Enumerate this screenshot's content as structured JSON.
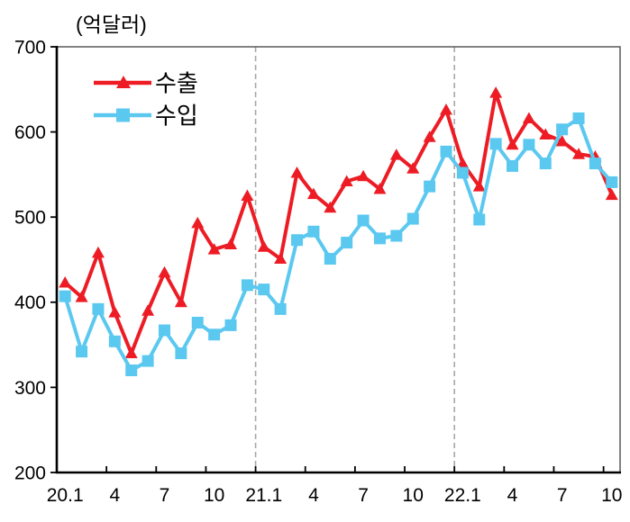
{
  "title_unit": "(억달러)",
  "legend": {
    "items": [
      {
        "label": "수출",
        "color": "#ED1C24",
        "marker": "triangle"
      },
      {
        "label": "수입",
        "color": "#5BC8F0",
        "marker": "square"
      }
    ]
  },
  "chart_data": {
    "type": "line",
    "title": "",
    "ylabel_unit": "(억달러)",
    "categories": [
      "20.1",
      "20.2",
      "20.3",
      "20.4",
      "20.5",
      "20.6",
      "20.7",
      "20.8",
      "20.9",
      "20.10",
      "20.11",
      "20.12",
      "21.1",
      "21.2",
      "21.3",
      "21.4",
      "21.5",
      "21.6",
      "21.7",
      "21.8",
      "21.9",
      "21.10",
      "21.11",
      "21.12",
      "22.1",
      "22.2",
      "22.3",
      "22.4",
      "22.5",
      "22.6",
      "22.7",
      "22.8",
      "22.9",
      "22.10"
    ],
    "series": [
      {
        "name": "수출",
        "color": "#ED1C24",
        "marker": "triangle",
        "values": [
          423,
          406,
          458,
          388,
          340,
          390,
          435,
          400,
          493,
          462,
          468,
          525,
          465,
          451,
          552,
          527,
          511,
          542,
          548,
          533,
          573,
          557,
          594,
          626,
          563,
          536,
          646,
          585,
          616,
          597,
          589,
          574,
          571,
          526
        ]
      },
      {
        "name": "수입",
        "color": "#5BC8F0",
        "marker": "square",
        "values": [
          407,
          342,
          392,
          354,
          320,
          331,
          367,
          340,
          376,
          362,
          373,
          420,
          415,
          392,
          473,
          483,
          451,
          470,
          496,
          475,
          478,
          498,
          536,
          577,
          552,
          497,
          586,
          560,
          585,
          563,
          603,
          616,
          563,
          541
        ]
      }
    ],
    "ylim": [
      200,
      700
    ],
    "yticks": [
      200,
      300,
      400,
      500,
      600,
      700
    ],
    "xtick_labels": [
      "20.1",
      "4",
      "7",
      "10",
      "21.1",
      "4",
      "7",
      "10",
      "22.1",
      "4",
      "7",
      "10"
    ],
    "xtick_month_indices": [
      0,
      3,
      6,
      9,
      12,
      15,
      18,
      21,
      24,
      27,
      30,
      33
    ],
    "dashed_vline_boundaries": [
      12,
      24
    ],
    "grid": false,
    "legend_position": "top-left",
    "axis_color": "#000000",
    "frame_color": "#595959",
    "dash_color": "#A6A6A6"
  }
}
